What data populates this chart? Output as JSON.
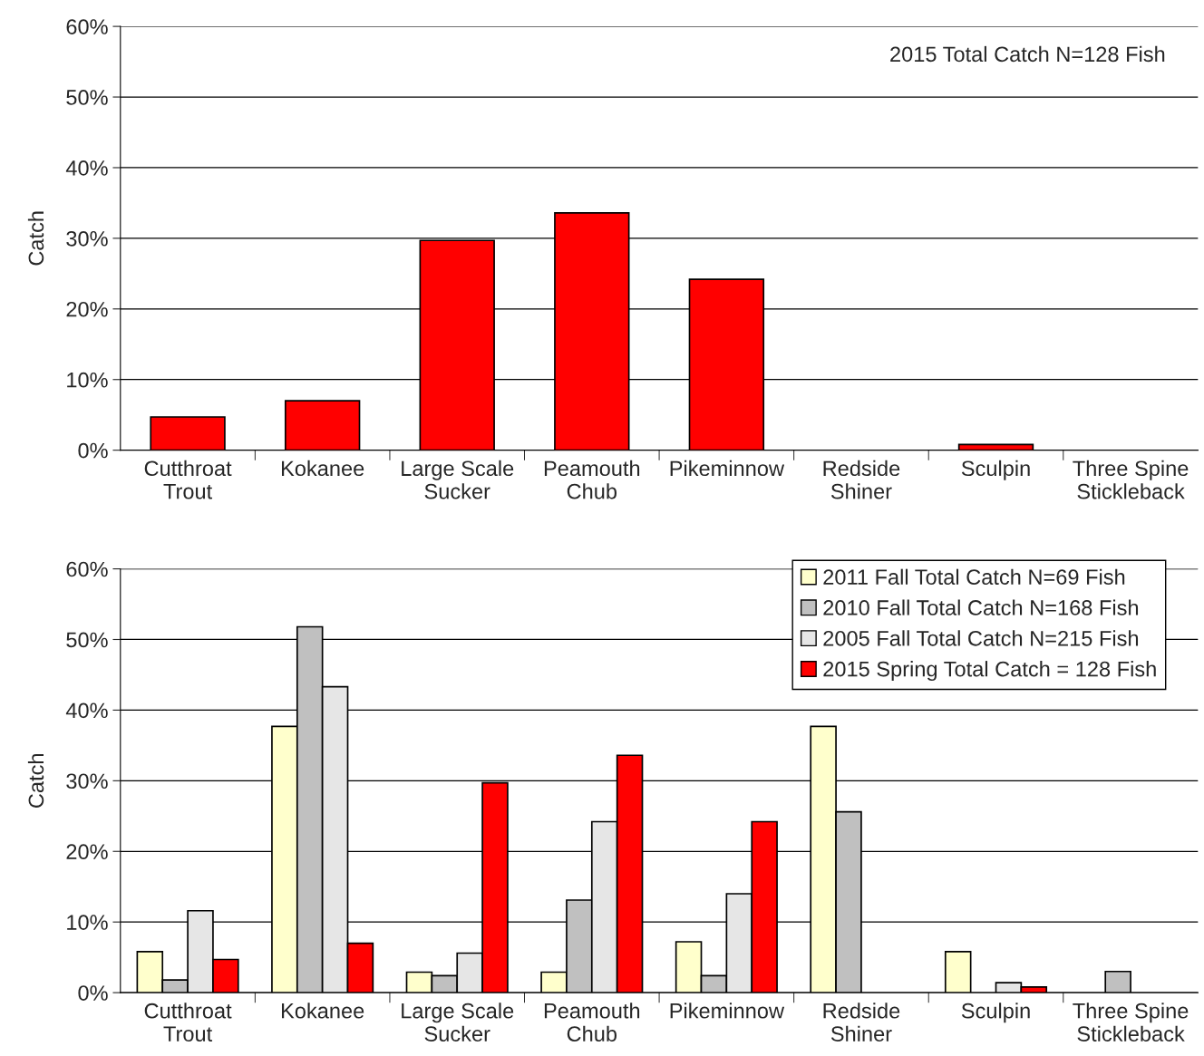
{
  "chart_data": [
    {
      "type": "bar",
      "ylabel": "Catch",
      "categories": [
        "Cutthroat\nTrout",
        "Kokanee",
        "Large Scale\nSucker",
        "Peamouth\nChub",
        "Pikeminnow",
        "Redside\nShiner",
        "Sculpin",
        "Three Spine\nStickleback"
      ],
      "series": [
        {
          "color": "#ff0000",
          "values": [
            4.7,
            7.0,
            29.7,
            33.6,
            24.2,
            null,
            0.8,
            null
          ]
        }
      ],
      "ylim": [
        0,
        60
      ],
      "yticks": [
        {
          "value": 0,
          "label": "0%"
        },
        {
          "value": 10,
          "label": "10%"
        },
        {
          "value": 20,
          "label": "20%"
        },
        {
          "value": 30,
          "label": "30%"
        },
        {
          "value": 40,
          "label": "40%"
        },
        {
          "value": 50,
          "label": "50%"
        },
        {
          "value": 60,
          "label": "60%"
        }
      ],
      "grid": "y",
      "legend": false,
      "annotations": [
        "2015 Total Catch N=128 Fish"
      ]
    },
    {
      "type": "bar",
      "ylabel": "Catch",
      "categories": [
        "Cutthroat\nTrout",
        "Kokanee",
        "Large Scale\nSucker",
        "Peamouth\nChub",
        "Pikeminnow",
        "Redside\nShiner",
        "Sculpin",
        "Three Spine\nStickleback"
      ],
      "series": [
        {
          "name": "2011 Fall Total Catch N=69 Fish",
          "color": "#ffffcc",
          "values": [
            5.8,
            37.7,
            2.9,
            2.9,
            7.2,
            37.7,
            5.8,
            null
          ]
        },
        {
          "name": "2010 Fall Total Catch N=168 Fish",
          "color": "#c0c0c0",
          "values": [
            1.8,
            51.8,
            2.4,
            13.1,
            2.4,
            25.6,
            null,
            3.0
          ]
        },
        {
          "name": "2005 Fall Total Catch N=215 Fish",
          "color": "#e6e6e6",
          "values": [
            11.6,
            43.3,
            5.6,
            24.2,
            14.0,
            null,
            1.4,
            null
          ]
        },
        {
          "name": "2015 Spring Total Catch = 128 Fish",
          "color": "#ff0000",
          "values": [
            4.7,
            7.0,
            29.7,
            33.6,
            24.2,
            null,
            0.8,
            null
          ]
        }
      ],
      "ylim": [
        0,
        60
      ],
      "yticks": [
        {
          "value": 0,
          "label": "0%"
        },
        {
          "value": 10,
          "label": "10%"
        },
        {
          "value": 20,
          "label": "20%"
        },
        {
          "value": 30,
          "label": "30%"
        },
        {
          "value": 40,
          "label": "40%"
        },
        {
          "value": 50,
          "label": "50%"
        },
        {
          "value": 60,
          "label": "60%"
        }
      ],
      "grid": "y",
      "legend": "top right"
    }
  ]
}
